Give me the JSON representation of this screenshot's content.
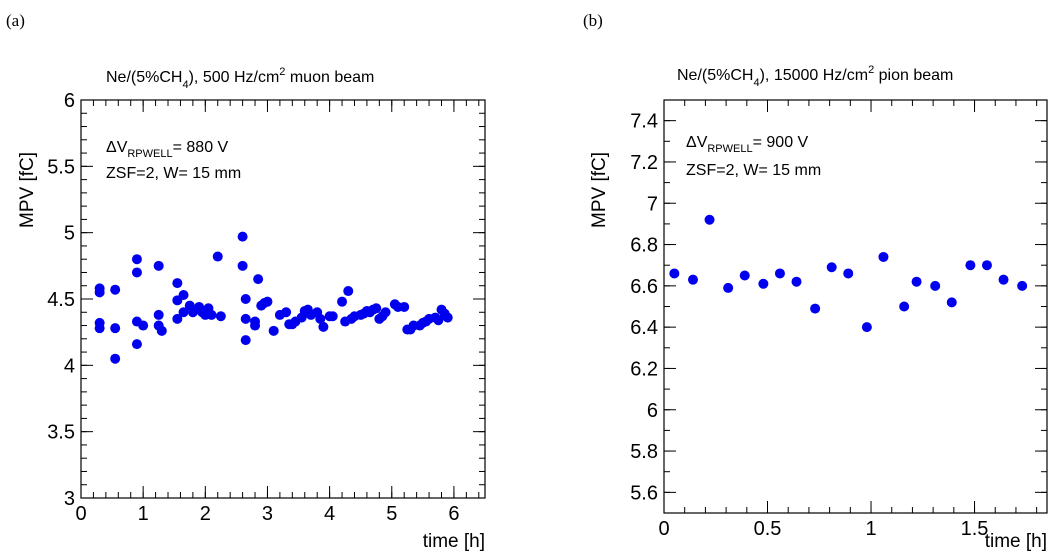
{
  "chart_data": [
    {
      "type": "scatter",
      "panel_label": "(a)",
      "title_parts": [
        "Ne/(5%CH",
        "4",
        "), 500 Hz/cm",
        "2",
        " muon beam"
      ],
      "xlabel": "time [h]",
      "ylabel": "MPV [fC]",
      "xlim": [
        0,
        6.5
      ],
      "ylim": [
        3,
        6
      ],
      "xticks": [
        "0",
        "1",
        "2",
        "3",
        "4",
        "5",
        "6"
      ],
      "yticks": [
        "3",
        "3.5",
        "4",
        "4.5",
        "5",
        "5.5",
        "6"
      ],
      "annotation_line1": {
        "prefix": "ΔV",
        "sub": "RPWELL",
        "suffix": "= 880 V"
      },
      "annotation_line2": "ZSF=2, W= 15 mm",
      "marker_color": "#0000ee",
      "x": [
        0.3,
        0.3,
        0.3,
        0.3,
        0.55,
        0.55,
        0.55,
        0.9,
        0.9,
        0.9,
        0.9,
        1.0,
        1.25,
        1.25,
        1.25,
        1.3,
        1.55,
        1.55,
        1.55,
        1.65,
        1.65,
        1.75,
        1.8,
        1.9,
        1.95,
        2.0,
        2.05,
        2.1,
        2.2,
        2.25,
        2.6,
        2.6,
        2.65,
        2.65,
        2.65,
        2.8,
        2.8,
        2.85,
        2.9,
        2.95,
        3.0,
        3.1,
        3.2,
        3.3,
        3.35,
        3.4,
        3.45,
        3.55,
        3.6,
        3.65,
        3.7,
        3.8,
        3.85,
        3.9,
        4.0,
        4.05,
        4.2,
        4.25,
        4.3,
        4.35,
        4.4,
        4.5,
        4.55,
        4.6,
        4.65,
        4.7,
        4.75,
        4.8,
        4.85,
        4.9,
        5.05,
        5.1,
        5.2,
        5.25,
        5.3,
        5.35,
        5.45,
        5.5,
        5.55,
        5.6,
        5.7,
        5.75,
        5.8,
        5.85,
        5.9
      ],
      "y": [
        4.58,
        4.55,
        4.32,
        4.28,
        4.57,
        4.28,
        4.05,
        4.8,
        4.7,
        4.33,
        4.16,
        4.3,
        4.75,
        4.38,
        4.3,
        4.26,
        4.62,
        4.49,
        4.35,
        4.53,
        4.4,
        4.45,
        4.4,
        4.44,
        4.4,
        4.38,
        4.43,
        4.38,
        4.82,
        4.37,
        4.97,
        4.75,
        4.5,
        4.35,
        4.19,
        4.3,
        4.33,
        4.65,
        4.45,
        4.47,
        4.48,
        4.26,
        4.38,
        4.4,
        4.31,
        4.31,
        4.33,
        4.36,
        4.41,
        4.42,
        4.38,
        4.4,
        4.35,
        4.29,
        4.37,
        4.37,
        4.48,
        4.33,
        4.56,
        4.35,
        4.37,
        4.38,
        4.39,
        4.41,
        4.4,
        4.42,
        4.43,
        4.35,
        4.37,
        4.4,
        4.46,
        4.44,
        4.44,
        4.27,
        4.27,
        4.3,
        4.3,
        4.32,
        4.33,
        4.35,
        4.36,
        4.34,
        4.42,
        4.39,
        4.36
      ]
    },
    {
      "type": "scatter",
      "panel_label": "(b)",
      "title_parts": [
        "Ne/(5%CH",
        "4",
        "), 15000 Hz/cm",
        "2",
        " pion beam"
      ],
      "xlabel": "time [h]",
      "ylabel": "MPV [fC]",
      "xlim": [
        0,
        1.85
      ],
      "ylim": [
        5.5,
        7.5
      ],
      "xticks": [
        "0",
        "0.5",
        "1",
        "1.5"
      ],
      "yticks": [
        "5.6",
        "5.8",
        "6",
        "6.2",
        "6.4",
        "6.6",
        "6.8",
        "7",
        "7.2",
        "7.4"
      ],
      "annotation_line1": {
        "prefix": "ΔV",
        "sub": "RPWELL",
        "suffix": "= 900 V"
      },
      "annotation_line2": "ZSF=2, W= 15 mm",
      "marker_color": "#0000ee",
      "x": [
        0.05,
        0.14,
        0.22,
        0.31,
        0.39,
        0.48,
        0.56,
        0.64,
        0.73,
        0.81,
        0.89,
        0.98,
        1.06,
        1.16,
        1.22,
        1.31,
        1.39,
        1.48,
        1.56,
        1.64,
        1.73
      ],
      "y": [
        6.66,
        6.63,
        6.92,
        6.59,
        6.65,
        6.61,
        6.66,
        6.62,
        6.49,
        6.69,
        6.66,
        6.4,
        6.74,
        6.5,
        6.62,
        6.6,
        6.52,
        6.7,
        6.7,
        6.63,
        6.6
      ]
    }
  ]
}
